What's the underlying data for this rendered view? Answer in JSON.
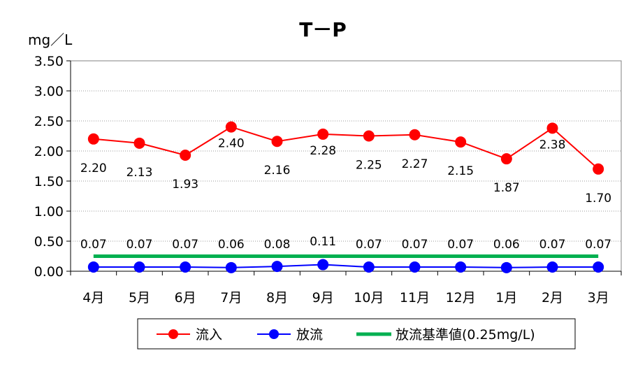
{
  "chart_data": {
    "type": "line",
    "title": "T－P",
    "ylabel": "mg／L",
    "xlabel": "",
    "categories": [
      "4月",
      "5月",
      "6月",
      "7月",
      "8月",
      "9月",
      "10月",
      "11月",
      "12月",
      "1月",
      "2月",
      "3月"
    ],
    "ylim": [
      0,
      3.5
    ],
    "yticks": [
      "0.00",
      "0.50",
      "1.00",
      "1.50",
      "2.00",
      "2.50",
      "3.00",
      "3.50"
    ],
    "grid": true,
    "legend_position": "bottom",
    "series": [
      {
        "name": "流入",
        "color": "#ff0000",
        "values": [
          2.2,
          2.13,
          1.93,
          2.4,
          2.16,
          2.28,
          2.25,
          2.27,
          2.15,
          1.87,
          2.38,
          1.7
        ],
        "labels": [
          "2.20",
          "2.13",
          "1.93",
          "2.40",
          "2.16",
          "2.28",
          "2.25",
          "2.27",
          "2.15",
          "1.87",
          "2.38",
          "1.70"
        ]
      },
      {
        "name": "放流",
        "color": "#0000ff",
        "values": [
          0.07,
          0.07,
          0.07,
          0.06,
          0.08,
          0.11,
          0.07,
          0.07,
          0.07,
          0.06,
          0.07,
          0.07
        ],
        "labels": [
          "0.07",
          "0.07",
          "0.07",
          "0.06",
          "0.08",
          "0.11",
          "0.07",
          "0.07",
          "0.07",
          "0.06",
          "0.07",
          "0.07"
        ]
      },
      {
        "name": "放流基準値(0.25mg/L)",
        "color": "#00b050",
        "values": [
          0.25,
          0.25,
          0.25,
          0.25,
          0.25,
          0.25,
          0.25,
          0.25,
          0.25,
          0.25,
          0.25,
          0.25
        ]
      }
    ]
  }
}
